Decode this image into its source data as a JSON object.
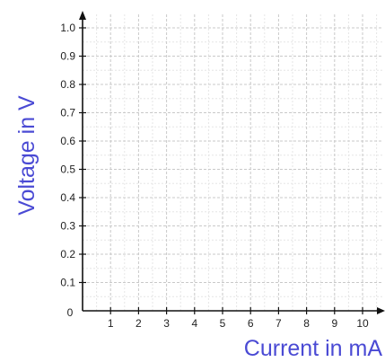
{
  "chart_data": {
    "type": "line",
    "title": "",
    "xlabel": "Current in mA",
    "ylabel": "Voltage in V",
    "xlim": [
      0,
      10.6
    ],
    "ylim": [
      0,
      1.05
    ],
    "x_ticks": [
      1,
      2,
      3,
      4,
      5,
      6,
      7,
      8,
      9,
      10
    ],
    "y_ticks": [
      0.1,
      0.2,
      0.3,
      0.4,
      0.5,
      0.6,
      0.7,
      0.8,
      0.9,
      1.0
    ],
    "x_tick_labels": [
      "1",
      "2",
      "3",
      "4",
      "5",
      "6",
      "7",
      "8",
      "9",
      "10"
    ],
    "y_tick_labels": [
      "0.1",
      "0.2",
      "0.3",
      "0.4",
      "0.5",
      "0.6",
      "0.7",
      "0.8",
      "0.9",
      "1.0"
    ],
    "origin_label": "0",
    "grid": true,
    "series": [],
    "colors": {
      "axis_title": "#4a4ad4",
      "axis": "#111111",
      "grid_major": "#c9c9c9",
      "grid_minor": "#e6e6e6",
      "tick_text": "#222222"
    }
  }
}
